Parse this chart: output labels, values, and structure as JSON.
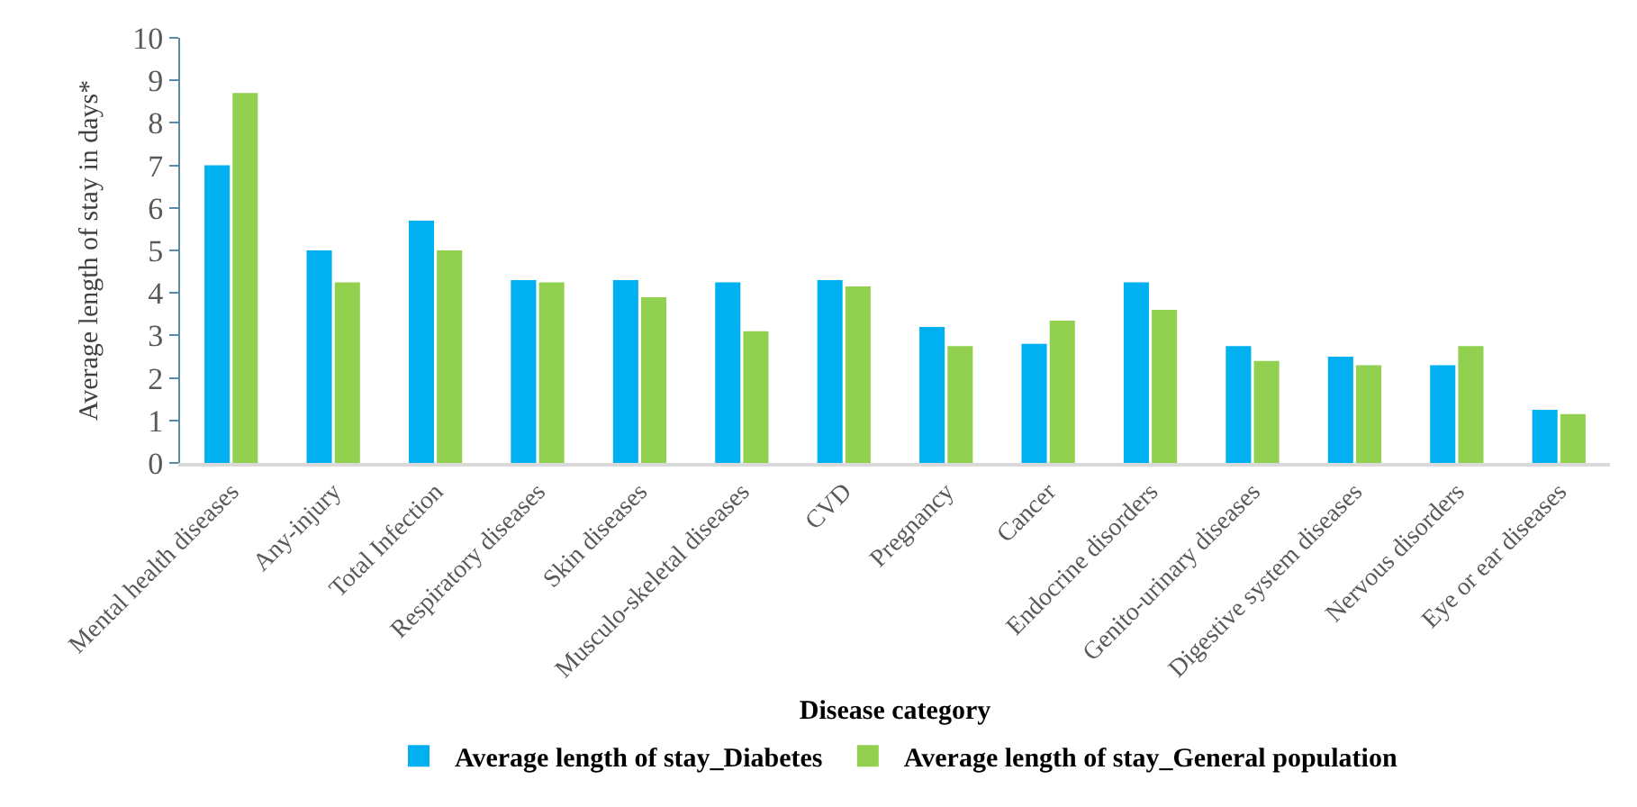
{
  "chart_data": {
    "type": "bar",
    "xlabel": "Disease category",
    "ylabel": "Average length of stay in days*",
    "categories": [
      "Mental health diseases",
      "Any-injury",
      "Total Infection",
      "Respiratory diseases",
      "Skin diseases",
      "Musculo-skeletal diseases",
      "CVD",
      "Pregnancy",
      "Cancer",
      "Endocrine disorders",
      "Genito-urinary diseases",
      "Digestive system diseases",
      "Nervous disorders",
      "Eye or ear diseases"
    ],
    "series": [
      {
        "name": "Average length of stay_Diabetes",
        "color": "#00b0f0",
        "values": [
          7.0,
          5.0,
          5.7,
          4.3,
          4.3,
          4.25,
          4.3,
          3.2,
          2.8,
          4.25,
          2.75,
          2.5,
          2.3,
          1.25
        ]
      },
      {
        "name": "Average length of stay_General population",
        "color": "#92d050",
        "values": [
          8.7,
          4.25,
          5.0,
          4.25,
          3.9,
          3.1,
          4.15,
          2.75,
          3.35,
          3.6,
          2.4,
          2.3,
          2.75,
          1.15
        ]
      }
    ],
    "ylim": [
      0,
      10
    ],
    "yticks": [
      0,
      1,
      2,
      3,
      4,
      5,
      6,
      7,
      8,
      9,
      10
    ],
    "legend": "bottom"
  }
}
